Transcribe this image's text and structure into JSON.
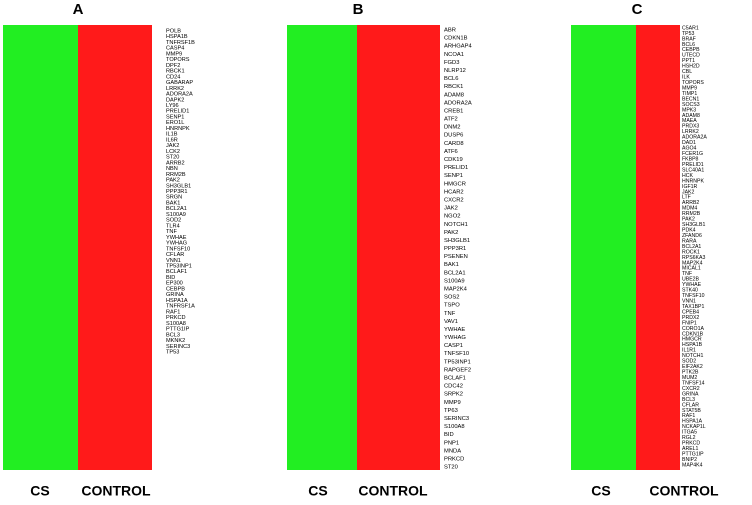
{
  "panels": [
    {
      "label": "A",
      "columns": [
        "CS",
        "CONTROL"
      ],
      "genes": [
        "POLB",
        "HSPA1B",
        "TNFRSF1B",
        "CASP4",
        "MMP9",
        "TOPORS",
        "DPF2",
        "RBCK1",
        "CD24",
        "GABARAP",
        "LRRK2",
        "ADORA2A",
        "DAPK2",
        "LY96",
        "PRELID1",
        "SENP1",
        "ERO1L",
        "HNRNPK",
        "IL1B",
        "IL6R",
        "JAK2",
        "LCK2",
        "ST20",
        "ARRB2",
        "NBN",
        "RRM2B",
        "PAK2",
        "SH3GLB1",
        "PPP3R1",
        "SRGN",
        "BAK1",
        "BCL2A1",
        "S100A9",
        "SOD2",
        "TLR4",
        "TNF",
        "YWHAE",
        "YWHAG",
        "TNFSF10",
        "CFLAR",
        "VNN1",
        "TP53INP1",
        "BCLAF1",
        "BID",
        "EP300",
        "CEBPB",
        "GRINA",
        "HSPA1A",
        "TNFRSF1A",
        "RAF1",
        "PRKCD",
        "S100A8",
        "PTTG1IP",
        "BCL3",
        "MKNK2",
        "SERINC3",
        "TP53"
      ]
    },
    {
      "label": "B",
      "columns": [
        "CS",
        "CONTROL"
      ],
      "genes": [
        "ABR",
        "CDKN1B",
        "ARHGAP4",
        "NCOA1",
        "FGD3",
        "NLRP12",
        "BCL6",
        "RBCK1",
        "ADAM8",
        "ADORA2A",
        "CREB1",
        "ATF2",
        "DNM2",
        "DUSP6",
        "CARD8",
        "ATF6",
        "CDK19",
        "PRELID1",
        "SENP1",
        "HMGCR",
        "HCAR2",
        "CXCR2",
        "JAK2",
        "NGO2",
        "NOTCH1",
        "PAK2",
        "SH3GLB1",
        "PPP3R1",
        "PSENEN",
        "BAK1",
        "BCL2A1",
        "S100A9",
        "MAP2K4",
        "SOS2",
        "TSPO",
        "TNF",
        "VAV1",
        "YWHAE",
        "YWHAG",
        "CASP1",
        "TNFSF10",
        "TP53INP1",
        "RAPGEF2",
        "BCLAF1",
        "CDC42",
        "SRPK2",
        "MMP9",
        "TP63",
        "SERINC3",
        "S100A8",
        "BID",
        "PNP1",
        "MNDA",
        "PRKCD",
        "ST20"
      ]
    },
    {
      "label": "C",
      "columns": [
        "CS",
        "CONTROL"
      ],
      "genes": [
        "C5AR1",
        "TP53",
        "BRAF",
        "BCL6",
        "CEBPB",
        "UTECD",
        "PPT1",
        "HSH2D",
        "CBL",
        "ILK",
        "TOPORS",
        "MMP9",
        "TIMP1",
        "BECN1",
        "SOCS3",
        "MPK3",
        "ADAM8",
        "MAEA",
        "PRDX3",
        "LRRK2",
        "ADORA2A",
        "DAD1",
        "AGO4",
        "FCER1G",
        "FKBP8",
        "PRELID1",
        "SLC40A1",
        "HCK",
        "HNRNPK",
        "IGF1R",
        "JAK2",
        "LTF",
        "ARRB2",
        "MDM4",
        "RRM2B",
        "PAK2",
        "SH3GLB1",
        "PDK4",
        "ZFAND6",
        "RARA",
        "BCL2A1",
        "ROCK1",
        "RPS6KA3",
        "MAP2K4",
        "MICAL1",
        "TNF",
        "UBE2B",
        "YWHAE",
        "STK40",
        "TNFSF10",
        "VNN1",
        "TAX1BP1",
        "CPEB4",
        "PRDX2",
        "FNIP1",
        "CORO1A",
        "CDKN1B",
        "HMGCR",
        "HSPA1B",
        "IL1R1",
        "NOTCH1",
        "SOD2",
        "EIF2AK2",
        "PTK2B",
        "MUM2",
        "TNFSF14",
        "CXCR2",
        "GRINA",
        "BCL3",
        "CFLAR",
        "STAT5B",
        "RAF1",
        "HSPA1A",
        "NCKAP1L",
        "ITGA5",
        "RGL2",
        "PRKCD",
        "AREL1",
        "PTTG1IP",
        "BNIP2",
        "MAP4K4"
      ]
    }
  ]
}
